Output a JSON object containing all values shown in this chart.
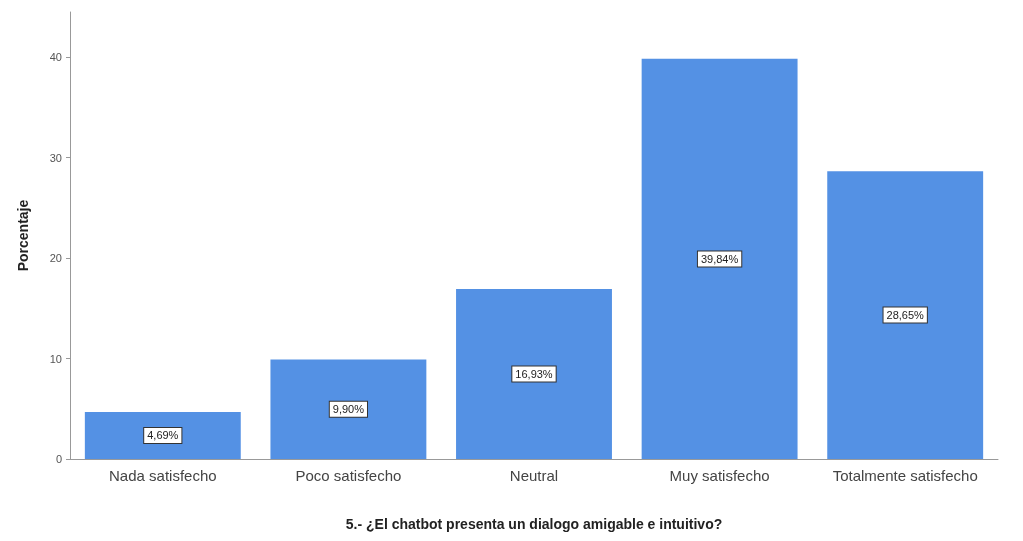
{
  "chart_data": {
    "type": "bar",
    "xlabel": "5.- ¿El chatbot presenta un dialogo amigable e intuitivo?",
    "ylabel": "Porcentaje",
    "categories": [
      "Nada satisfecho",
      "Poco satisfecho",
      "Neutral",
      "Muy satisfecho",
      "Totalmente satisfecho"
    ],
    "values": [
      4.69,
      9.9,
      16.93,
      39.84,
      28.65
    ],
    "value_labels": [
      "4,69%",
      "9,90%",
      "16,93%",
      "39,84%",
      "28,65%"
    ],
    "color": "#5491e4",
    "ylim": [
      0,
      44.5
    ],
    "yticks": [
      0,
      10,
      20,
      30,
      40
    ],
    "grid": false
  }
}
